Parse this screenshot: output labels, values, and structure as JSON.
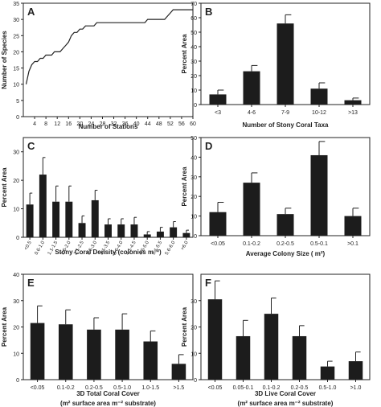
{
  "chart_data": [
    {
      "panel": "A",
      "type": "line",
      "xlabel": "Number of Stations",
      "ylabel": "Number of Species",
      "xlim": [
        0,
        60
      ],
      "ylim": [
        0,
        35
      ],
      "xticks": [
        4,
        8,
        12,
        16,
        20,
        24,
        28,
        32,
        36,
        40,
        44,
        48,
        52,
        56,
        60
      ],
      "yticks": [
        0,
        5,
        10,
        15,
        20,
        25,
        30,
        35
      ],
      "x": [
        1,
        2,
        3,
        4,
        5,
        6,
        7,
        8,
        9,
        10,
        11,
        12,
        13,
        14,
        15,
        16,
        17,
        18,
        19,
        20,
        21,
        22,
        23,
        24,
        25,
        26,
        27,
        28,
        29,
        30,
        31,
        32,
        33,
        34,
        35,
        36,
        37,
        38,
        39,
        40,
        41,
        42,
        43,
        44,
        45,
        46,
        47,
        48,
        49,
        50,
        51,
        52,
        53,
        54,
        55,
        56,
        57,
        58,
        59,
        60
      ],
      "y": [
        10,
        14,
        16,
        17,
        17,
        18,
        18,
        19,
        19,
        19,
        20,
        20,
        20,
        21,
        22,
        23,
        25,
        26,
        26,
        27,
        27,
        28,
        28,
        28,
        28,
        29,
        29,
        29,
        29,
        29,
        29,
        29,
        29,
        29,
        29,
        29,
        29,
        29,
        29,
        29,
        29,
        29,
        29,
        30,
        30,
        30,
        30,
        30,
        30,
        30,
        31,
        32,
        33,
        33,
        33,
        33,
        33,
        33,
        33,
        33
      ]
    },
    {
      "panel": "B",
      "type": "bar",
      "xlabel": "Number of Stony Coral Taxa",
      "ylabel": "Percent Area",
      "ylim": [
        0,
        70
      ],
      "yticks": [
        0,
        10,
        20,
        30,
        40,
        50,
        60,
        70
      ],
      "categories": [
        "<3",
        "4-6",
        "7-9",
        "10-12",
        ">13"
      ],
      "values": [
        7,
        23,
        56,
        11,
        3
      ],
      "errors": [
        3,
        4,
        6,
        4,
        1.5
      ]
    },
    {
      "panel": "C",
      "type": "bar",
      "xlabel": "Stony Coral Density (colonies m⁻²)",
      "ylabel": "Percent Area",
      "ylim": [
        0,
        35
      ],
      "yticks": [
        0,
        10,
        20,
        30
      ],
      "categories": [
        "<0.5",
        "0.6-1.0",
        "1.1-1.5",
        "1.6-2.0",
        "2.1-2.5",
        "2.6-3.0",
        "3.1-3.5",
        "3.6-4.0",
        "4.1-4.5",
        "4.6-5.0",
        "5.1-5.5",
        "5.6-6.0",
        ">6.0"
      ],
      "values": [
        11.5,
        22,
        12.5,
        12.5,
        5,
        13,
        4.5,
        4.5,
        4.5,
        1,
        2,
        3.5,
        1.5
      ],
      "errors": [
        4,
        6,
        5.5,
        5.5,
        2.5,
        3.5,
        2,
        2,
        2.5,
        1,
        1.5,
        2,
        1
      ]
    },
    {
      "panel": "D",
      "type": "bar",
      "xlabel": "Average Colony Size ( m²)",
      "ylabel": "Percent Area",
      "ylim": [
        0,
        50
      ],
      "yticks": [
        0,
        10,
        20,
        30,
        40,
        50
      ],
      "categories": [
        "<0.05",
        "0.1-0.2",
        "0.2-0.5",
        "0.5-0.1",
        ">0.1"
      ],
      "values": [
        12,
        27,
        11,
        41,
        10
      ],
      "errors": [
        5,
        5,
        3,
        7,
        4
      ]
    },
    {
      "panel": "E",
      "type": "bar",
      "xlabel": "3D Total Coral Cover",
      "xlabel2": "(m² surface area m⁻² substrate)",
      "ylabel": "Percent Area",
      "ylim": [
        0,
        40
      ],
      "yticks": [
        0,
        10,
        20,
        30,
        40
      ],
      "categories": [
        "<0.05",
        "0.1-0.2",
        "0.2-0.5",
        "0.5-1.0",
        "1.0-1.5",
        ">1.5"
      ],
      "values": [
        21.5,
        21,
        19,
        19,
        14.5,
        6
      ],
      "errors": [
        6.5,
        5.5,
        4.5,
        6,
        4,
        3.5
      ]
    },
    {
      "panel": "F",
      "type": "bar",
      "xlabel": "3D Live Coral Cover",
      "xlabel2": "(m² surface area m⁻² substrate)",
      "ylabel": "Percent Area",
      "ylim": [
        0,
        40
      ],
      "yticks": [
        0,
        10,
        20,
        30
      ],
      "categories": [
        "<0.05",
        "0.05-0.1",
        "0.1-0.2",
        "0.2-0.5",
        "0.5-1.0",
        ">1.0"
      ],
      "values": [
        30.5,
        16.5,
        25,
        16.5,
        5,
        7
      ],
      "errors": [
        7,
        6,
        6,
        4,
        2,
        3.5
      ]
    }
  ]
}
